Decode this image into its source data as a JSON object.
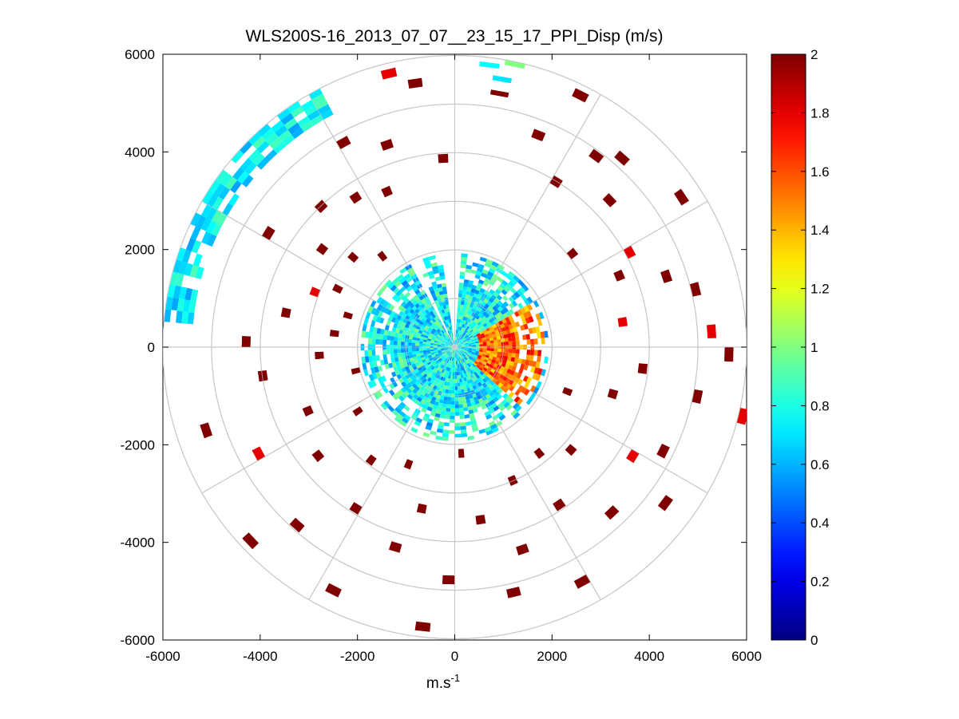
{
  "chart_data": {
    "type": "heatmap",
    "subtype": "polar-ppi",
    "title": "WLS200S-16_2013_07_07__23_15_17_PPI_Disp (m/s)",
    "xlabel": "m.s",
    "xlabel_sup": "-1",
    "xlim": [
      -6000,
      6000
    ],
    "ylim": [
      -6000,
      6000
    ],
    "x_ticks": [
      "-6000",
      "-4000",
      "-2000",
      "0",
      "2000",
      "4000",
      "6000"
    ],
    "y_ticks": [
      "6000",
      "4000",
      "2000",
      "0",
      "-2000",
      "-4000",
      "-6000"
    ],
    "polar_grid": {
      "rings": [
        1000,
        2000,
        3000,
        4000,
        5000,
        6000
      ],
      "spokes_deg": 30
    },
    "colorbar": {
      "colormap": "jet",
      "range": [
        0,
        2
      ],
      "ticks": [
        "0",
        "0.2",
        "0.4",
        "0.6",
        "0.8",
        "1",
        "1.2",
        "1.4",
        "1.6",
        "1.8",
        "2"
      ]
    },
    "center_disc": {
      "max_range": 1900,
      "mean_value": 0.75,
      "hot_sector": {
        "az_deg": [
          60,
          130
        ],
        "range": [
          500,
          1800
        ],
        "value": 1.8
      }
    },
    "outer_arc_nw": {
      "az_deg": [
        275,
        332
      ],
      "range": [
        5400,
        5900
      ],
      "value": 0.7
    },
    "north_cells": [
      {
        "az": 5,
        "r": 5800,
        "v": 0.75
      },
      {
        "az": 8,
        "r": 5550,
        "v": 0.7
      },
      {
        "az": 10,
        "r": 5900,
        "v": 1.0
      },
      {
        "az": 8,
        "r": 5250,
        "v": 2.0
      }
    ],
    "scatter_cells": [
      {
        "az": 90,
        "r": 5550,
        "v": 2.0
      },
      {
        "az": 280,
        "r": 3450,
        "v": 2.0
      },
      {
        "az": 300,
        "r": 4400,
        "v": 2.0
      },
      {
        "az": 320,
        "r": 2300,
        "v": 2.0
      },
      {
        "az": 330,
        "r": 4700,
        "v": 2.0
      },
      {
        "az": 335,
        "r": 3400,
        "v": 2.0
      },
      {
        "az": 345,
        "r": 5700,
        "v": 1.8
      },
      {
        "az": 350,
        "r": 5400,
        "v": 2.0
      },
      {
        "az": 40,
        "r": 5100,
        "v": 2.0
      },
      {
        "az": 45,
        "r": 4300,
        "v": 2.0
      },
      {
        "az": 50,
        "r": 3000,
        "v": 2.0
      },
      {
        "az": 55,
        "r": 5500,
        "v": 2.0
      },
      {
        "az": 60,
        "r": 4000,
        "v": 1.8
      },
      {
        "az": 65,
        "r": 3600,
        "v": 2.0
      },
      {
        "az": 75,
        "r": 5000,
        "v": 2.0
      },
      {
        "az": 80,
        "r": 3400,
        "v": 1.8
      },
      {
        "az": 100,
        "r": 5000,
        "v": 2.0
      },
      {
        "az": 105,
        "r": 3300,
        "v": 2.0
      },
      {
        "az": 110,
        "r": 2400,
        "v": 2.0
      },
      {
        "az": 120,
        "r": 4200,
        "v": 1.8
      },
      {
        "az": 125,
        "r": 5300,
        "v": 2.0
      },
      {
        "az": 130,
        "r": 3100,
        "v": 2.0
      },
      {
        "az": 135,
        "r": 4600,
        "v": 2.0
      },
      {
        "az": 140,
        "r": 2700,
        "v": 2.0
      },
      {
        "az": 145,
        "r": 3800,
        "v": 2.0
      },
      {
        "az": 150,
        "r": 5400,
        "v": 2.0
      },
      {
        "az": 155,
        "r": 2900,
        "v": 2.0
      },
      {
        "az": 160,
        "r": 4300,
        "v": 2.0
      },
      {
        "az": 165,
        "r": 5100,
        "v": 2.0
      },
      {
        "az": 170,
        "r": 3500,
        "v": 2.0
      },
      {
        "az": 175,
        "r": 2100,
        "v": 2.0
      },
      {
        "az": 180,
        "r": 4700,
        "v": 2.0
      },
      {
        "az": 185,
        "r": 5700,
        "v": 2.0
      },
      {
        "az": 190,
        "r": 3300,
        "v": 2.0
      },
      {
        "az": 195,
        "r": 4200,
        "v": 2.0
      },
      {
        "az": 200,
        "r": 2500,
        "v": 2.0
      },
      {
        "az": 205,
        "r": 5500,
        "v": 2.0
      },
      {
        "az": 210,
        "r": 3800,
        "v": 2.0
      },
      {
        "az": 215,
        "r": 2800,
        "v": 2.0
      },
      {
        "az": 220,
        "r": 4800,
        "v": 2.0
      },
      {
        "az": 225,
        "r": 5700,
        "v": 2.0
      },
      {
        "az": 230,
        "r": 3500,
        "v": 2.0
      },
      {
        "az": 235,
        "r": 2300,
        "v": 2.0
      },
      {
        "az": 240,
        "r": 4500,
        "v": 1.8
      },
      {
        "az": 245,
        "r": 3200,
        "v": 2.0
      },
      {
        "az": 250,
        "r": 5300,
        "v": 2.0
      },
      {
        "az": 255,
        "r": 2000,
        "v": 2.0
      },
      {
        "az": 260,
        "r": 3900,
        "v": 2.0
      },
      {
        "az": 265,
        "r": 2700,
        "v": 2.0
      },
      {
        "az": 270,
        "r": 4200,
        "v": 2.0
      },
      {
        "az": 275,
        "r": 2400,
        "v": 2.0
      },
      {
        "az": 285,
        "r": 2200,
        "v": 2.0
      },
      {
        "az": 290,
        "r": 3000,
        "v": 1.8
      },
      {
        "az": 295,
        "r": 2600,
        "v": 2.0
      },
      {
        "az": 305,
        "r": 3300,
        "v": 2.0
      },
      {
        "az": 310,
        "r": 2700,
        "v": 2.0
      },
      {
        "az": 315,
        "r": 3900,
        "v": 2.0
      },
      {
        "az": 325,
        "r": 3600,
        "v": 2.0
      },
      {
        "az": 340,
        "r": 4300,
        "v": 2.0
      },
      {
        "az": 355,
        "r": 3800,
        "v": 2.0
      },
      {
        "az": 20,
        "r": 4600,
        "v": 2.0
      },
      {
        "az": 25,
        "r": 5700,
        "v": 2.0
      },
      {
        "az": 30,
        "r": 3900,
        "v": 2.0
      },
      {
        "az": 35,
        "r": 4800,
        "v": 2.0
      },
      {
        "az": 70,
        "r": 4500,
        "v": 2.0
      },
      {
        "az": 85,
        "r": 5200,
        "v": 1.8
      },
      {
        "az": 95,
        "r": 3800,
        "v": 2.0
      },
      {
        "az": 115,
        "r": 4700,
        "v": 2.0
      },
      {
        "az": 102,
        "r": 6000,
        "v": 1.8
      }
    ]
  }
}
